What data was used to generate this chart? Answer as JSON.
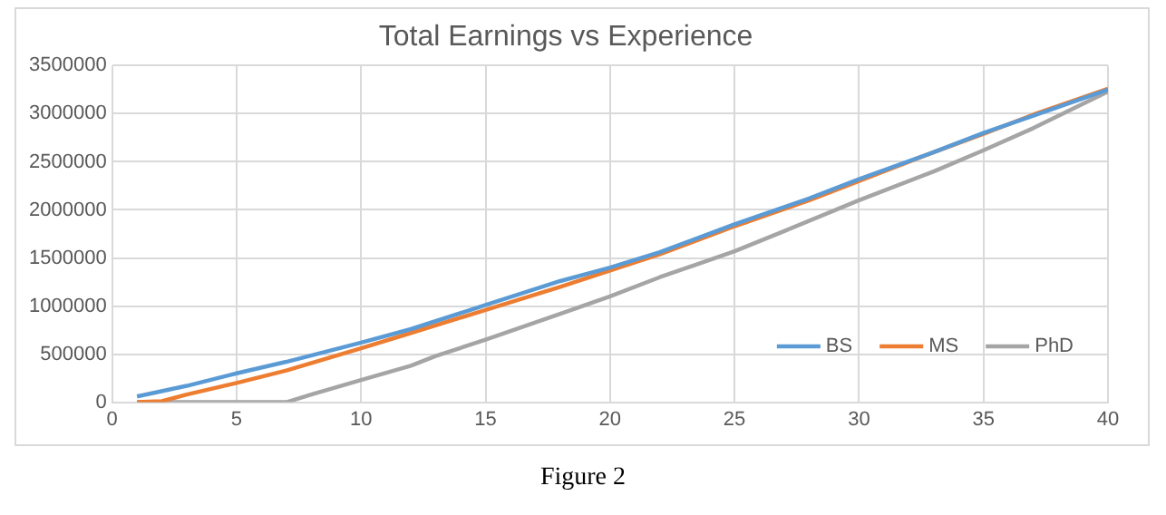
{
  "chart_data": {
    "type": "line",
    "title": "Total Earnings vs Experience",
    "annotations": [
      "Figure 2"
    ],
    "xlim": [
      0,
      40
    ],
    "xticks": [
      0,
      5,
      10,
      15,
      20,
      25,
      30,
      35,
      40
    ],
    "ylim": [
      0,
      3500000
    ],
    "yticks": [
      0,
      500000,
      1000000,
      1500000,
      2000000,
      2500000,
      3000000,
      3500000
    ],
    "grid": true,
    "legend": "bottom right",
    "marker": "none",
    "line_style": "solid",
    "series": [
      {
        "name": "BS",
        "color": "#5b9bd5",
        "x": [
          1,
          3,
          5,
          7,
          10,
          12,
          15,
          18,
          20,
          22,
          25,
          28,
          30,
          33,
          35,
          37,
          40
        ],
        "values": [
          60000,
          170000,
          300000,
          420000,
          620000,
          760000,
          1010000,
          1260000,
          1400000,
          1560000,
          1850000,
          2120000,
          2320000,
          2600000,
          2800000,
          2980000,
          3250000
        ]
      },
      {
        "name": "MS",
        "color": "#ed7d31",
        "x": [
          1,
          2,
          3,
          5,
          7,
          10,
          12,
          15,
          18,
          20,
          22,
          25,
          28,
          30,
          33,
          35,
          37,
          40
        ],
        "values": [
          0,
          10000,
          80000,
          200000,
          330000,
          560000,
          720000,
          960000,
          1200000,
          1370000,
          1540000,
          1830000,
          2100000,
          2300000,
          2600000,
          2790000,
          2990000,
          3260000
        ]
      },
      {
        "name": "PhD",
        "color": "#a5a5a5",
        "x": [
          1,
          7,
          8,
          10,
          12,
          13,
          15,
          18,
          20,
          22,
          25,
          27,
          30,
          33,
          35,
          37,
          40
        ],
        "values": [
          0,
          0,
          80000,
          230000,
          380000,
          480000,
          650000,
          920000,
          1100000,
          1300000,
          1570000,
          1780000,
          2100000,
          2400000,
          2620000,
          2850000,
          3230000
        ]
      }
    ]
  }
}
